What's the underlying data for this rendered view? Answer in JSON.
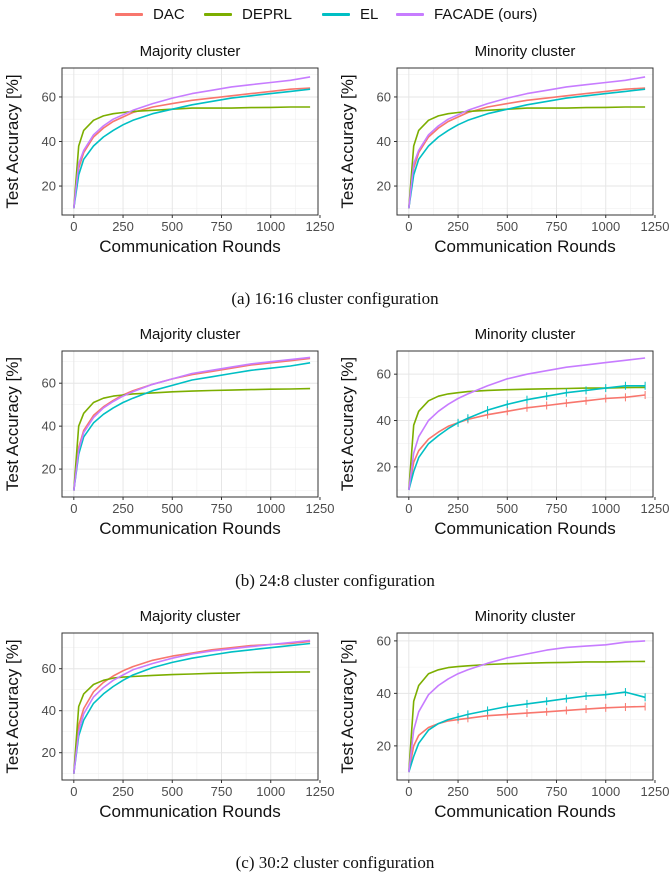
{
  "legend": [
    {
      "name": "DAC",
      "color": "#F8766D"
    },
    {
      "name": "DEPRL",
      "color": "#7CAE00"
    },
    {
      "name": "EL",
      "color": "#00BFC4"
    },
    {
      "name": "FACADE (ours)",
      "color": "#C77CFF"
    }
  ],
  "captions": [
    "(a) 16:16 cluster configuration",
    "(b) 24:8 cluster configuration",
    "(c) 30:2 cluster configuration"
  ],
  "chart_data": [
    {
      "type": "line",
      "title": "Majority cluster",
      "xlabel": "Communication Rounds",
      "ylabel": "Test Accuracy [%]",
      "xlim": [
        -60,
        1240
      ],
      "ylim": [
        7,
        73
      ],
      "xticks": [
        0,
        250,
        500,
        750,
        1000,
        1250
      ],
      "yticks": [
        20,
        40,
        60
      ],
      "x": [
        0,
        25,
        50,
        100,
        150,
        200,
        250,
        300,
        400,
        500,
        600,
        700,
        800,
        900,
        1000,
        1100,
        1200
      ],
      "series": [
        {
          "name": "DAC",
          "values": [
            10,
            28,
            35,
            42,
            46,
            49,
            51,
            53,
            55.5,
            57,
            58.5,
            59.5,
            60.5,
            61.5,
            62.5,
            63.5,
            64
          ]
        },
        {
          "name": "DEPRL",
          "values": [
            10,
            38,
            45,
            49.5,
            51.5,
            52.5,
            53,
            53.5,
            54,
            54.5,
            55,
            55,
            55,
            55.2,
            55.3,
            55.5,
            55.5
          ]
        },
        {
          "name": "EL",
          "values": [
            10,
            25,
            32,
            38,
            42,
            45,
            47.5,
            49.5,
            52.5,
            54.5,
            56.5,
            58,
            59.5,
            60.5,
            61.5,
            62.5,
            63.5
          ]
        },
        {
          "name": "FACADE (ours)",
          "values": [
            10,
            30,
            36,
            43,
            47,
            50,
            52,
            54,
            57,
            59.5,
            61.5,
            63,
            64.5,
            65.5,
            66.5,
            67.5,
            69
          ]
        }
      ]
    },
    {
      "type": "line",
      "title": "Minority cluster",
      "xlabel": "Communication Rounds",
      "ylabel": "Test Accuracy [%]",
      "xlim": [
        -60,
        1240
      ],
      "ylim": [
        7,
        73
      ],
      "xticks": [
        0,
        250,
        500,
        750,
        1000,
        1250
      ],
      "yticks": [
        20,
        40,
        60
      ],
      "x": [
        0,
        25,
        50,
        100,
        150,
        200,
        250,
        300,
        400,
        500,
        600,
        700,
        800,
        900,
        1000,
        1100,
        1200
      ],
      "series": [
        {
          "name": "DAC",
          "values": [
            10,
            28,
            35,
            42,
            46,
            49,
            51,
            53,
            55.5,
            57,
            58.5,
            59.5,
            60.5,
            61.5,
            62.5,
            63.5,
            64
          ]
        },
        {
          "name": "DEPRL",
          "values": [
            10,
            38,
            45,
            49.5,
            51.5,
            52.5,
            53,
            53.5,
            54,
            54.5,
            55,
            55,
            55,
            55.2,
            55.3,
            55.5,
            55.5
          ]
        },
        {
          "name": "EL",
          "values": [
            10,
            25,
            32,
            38,
            42,
            45,
            47.5,
            49.5,
            52.5,
            54.5,
            56.5,
            58,
            59.5,
            60.5,
            61.5,
            62.5,
            63.5
          ]
        },
        {
          "name": "FACADE (ours)",
          "values": [
            10,
            30,
            36,
            43,
            47,
            50,
            52,
            54,
            57,
            59.5,
            61.5,
            63,
            64.5,
            65.5,
            66.5,
            67.5,
            69
          ]
        }
      ]
    },
    {
      "type": "line",
      "title": "Majority cluster",
      "xlabel": "Communication Rounds",
      "ylabel": "Test Accuracy [%]",
      "xlim": [
        -60,
        1240
      ],
      "ylim": [
        7,
        75
      ],
      "xticks": [
        0,
        250,
        500,
        750,
        1000,
        1250
      ],
      "yticks": [
        20,
        40,
        60
      ],
      "x": [
        0,
        25,
        50,
        100,
        150,
        200,
        250,
        300,
        400,
        500,
        600,
        700,
        800,
        900,
        1000,
        1100,
        1200
      ],
      "series": [
        {
          "name": "DAC",
          "values": [
            10,
            30,
            38,
            45,
            49,
            52,
            54.5,
            56.5,
            59.5,
            62,
            64,
            65.5,
            67,
            68.5,
            69.5,
            70.5,
            71.5
          ]
        },
        {
          "name": "DEPRL",
          "values": [
            10,
            40,
            46,
            51,
            53,
            54,
            54.5,
            55,
            55.5,
            56,
            56.3,
            56.6,
            56.8,
            57,
            57.2,
            57.3,
            57.5
          ]
        },
        {
          "name": "EL",
          "values": [
            10,
            27,
            35,
            41.5,
            45.5,
            48.5,
            51,
            53,
            56.5,
            59,
            61.5,
            63,
            64.5,
            66,
            67,
            68,
            69.5
          ]
        },
        {
          "name": "FACADE (ours)",
          "values": [
            10,
            29,
            37,
            44,
            48.5,
            51.5,
            54,
            56,
            59.5,
            62,
            64.5,
            66,
            67.5,
            69,
            70,
            71,
            72
          ]
        }
      ]
    },
    {
      "type": "line",
      "title": "Minority cluster",
      "xlabel": "Communication Rounds",
      "ylabel": "Test Accuracy [%]",
      "xlim": [
        -60,
        1240
      ],
      "ylim": [
        7,
        70
      ],
      "xticks": [
        0,
        250,
        500,
        750,
        1000,
        1250
      ],
      "yticks": [
        20,
        40,
        60
      ],
      "x": [
        0,
        25,
        50,
        100,
        150,
        200,
        250,
        300,
        400,
        500,
        600,
        700,
        800,
        900,
        1000,
        1100,
        1200
      ],
      "series": [
        {
          "name": "DAC",
          "values": [
            10,
            22,
            27,
            32,
            35,
            37.5,
            39,
            40.5,
            42.5,
            44,
            45.5,
            46.5,
            47.5,
            48.5,
            49.5,
            50,
            51
          ]
        },
        {
          "name": "DEPRL",
          "values": [
            10,
            38,
            44,
            48.5,
            50.5,
            51.5,
            52,
            52.5,
            53,
            53.3,
            53.5,
            53.7,
            53.8,
            54,
            54,
            54.2,
            54.3
          ]
        },
        {
          "name": "EL",
          "values": [
            10,
            18,
            24,
            30,
            33.5,
            36.5,
            39,
            41,
            44.5,
            47,
            49,
            50.5,
            52,
            53,
            54,
            55,
            55
          ]
        },
        {
          "name": "FACADE (ours)",
          "values": [
            10,
            26,
            33,
            40,
            44,
            47,
            49.5,
            51.5,
            55,
            58,
            60,
            61.5,
            63,
            64,
            65,
            66,
            67
          ]
        }
      ]
    },
    {
      "type": "line",
      "title": "Majority cluster",
      "xlabel": "Communication Rounds",
      "ylabel": "Test Accuracy [%]",
      "xlim": [
        -60,
        1240
      ],
      "ylim": [
        7,
        77
      ],
      "xticks": [
        0,
        250,
        500,
        750,
        1000,
        1250
      ],
      "yticks": [
        20,
        40,
        60
      ],
      "x": [
        0,
        25,
        50,
        100,
        150,
        200,
        250,
        300,
        400,
        500,
        600,
        700,
        800,
        900,
        1000,
        1100,
        1200
      ],
      "series": [
        {
          "name": "DAC",
          "values": [
            10,
            33,
            41,
            49,
            53.5,
            56.5,
            59,
            61,
            64,
            66,
            67.5,
            69,
            70,
            71,
            71.5,
            72,
            73
          ]
        },
        {
          "name": "DEPRL",
          "values": [
            10,
            42,
            48,
            52.5,
            54.5,
            55.5,
            56,
            56.3,
            56.8,
            57.2,
            57.5,
            57.8,
            58,
            58.2,
            58.3,
            58.4,
            58.5
          ]
        },
        {
          "name": "EL",
          "values": [
            10,
            28,
            35.5,
            43.5,
            48,
            51.5,
            54.5,
            57,
            60.5,
            63,
            65,
            66.5,
            68,
            69,
            70,
            71,
            72
          ]
        },
        {
          "name": "FACADE (ours)",
          "values": [
            10,
            30,
            38.5,
            46.5,
            51,
            54.5,
            57,
            59.5,
            62.5,
            65,
            67,
            68.5,
            69.5,
            70.5,
            71.5,
            72.5,
            73.5
          ]
        }
      ]
    },
    {
      "type": "line",
      "title": "Minority cluster",
      "xlabel": "Communication Rounds",
      "ylabel": "Test Accuracy [%]",
      "xlim": [
        -60,
        1240
      ],
      "ylim": [
        7,
        63
      ],
      "xticks": [
        0,
        250,
        500,
        750,
        1000,
        1250
      ],
      "yticks": [
        20,
        40,
        60
      ],
      "x": [
        0,
        25,
        50,
        100,
        150,
        200,
        250,
        300,
        400,
        500,
        600,
        700,
        800,
        900,
        1000,
        1100,
        1200
      ],
      "series": [
        {
          "name": "DAC",
          "values": [
            10,
            20,
            24,
            27,
            28.5,
            29.5,
            30,
            30.5,
            31.5,
            32,
            32.5,
            33,
            33.5,
            34,
            34.5,
            34.8,
            35
          ]
        },
        {
          "name": "DEPRL",
          "values": [
            10,
            37,
            43,
            47.5,
            49,
            49.8,
            50.2,
            50.5,
            51,
            51.3,
            51.5,
            51.7,
            51.8,
            52,
            52,
            52.1,
            52.2
          ]
        },
        {
          "name": "EL",
          "values": [
            10,
            16,
            21,
            26,
            28.5,
            30,
            31,
            32,
            33.5,
            35,
            36,
            37,
            38,
            39,
            39.5,
            40.5,
            38.5
          ]
        },
        {
          "name": "FACADE (ours)",
          "values": [
            10,
            26,
            33,
            39.5,
            43,
            45.5,
            47.5,
            49,
            51.5,
            53.5,
            55,
            56.5,
            57.5,
            58,
            58.5,
            59.5,
            60
          ]
        }
      ]
    }
  ]
}
